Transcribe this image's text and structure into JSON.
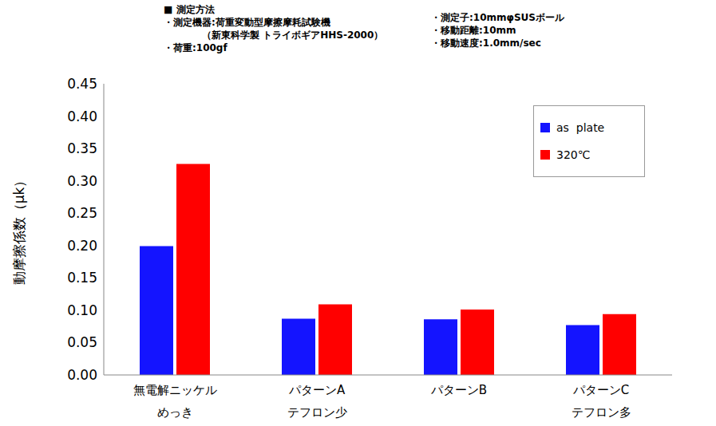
{
  "chart_data": {
    "type": "bar",
    "annotations": [
      [
        "■ 測定方法",
        "・測定機器:荷重変動型摩擦摩耗試験機",
        "（新東科学製 トライボギアHHS-2000）",
        "・荷重:100gf"
      ],
      [
        "・測定子:10mmφSUSボール",
        "・移動距離:10mm",
        "・移動速度:1.0mm/sec"
      ]
    ],
    "y_label": "動摩擦係数（μk）",
    "categories": [
      "無電解ニッケル\nめっき",
      "パターンA\nテフロン少",
      "パターンB",
      "パターンC\nテフロン多"
    ],
    "series": [
      {
        "name": "as  plate",
        "color": "#1414ff",
        "values": [
          0.199,
          0.087,
          0.086,
          0.077
        ]
      },
      {
        "name": "320℃",
        "color": "#ff0000",
        "values": [
          0.326,
          0.109,
          0.101,
          0.094
        ]
      }
    ],
    "ylim": [
      0,
      0.45
    ],
    "yticks": [
      {
        "value": 0,
        "label": "0.00"
      },
      {
        "value": 0.05,
        "label": "0.05"
      },
      {
        "value": 0.1,
        "label": "0.10"
      },
      {
        "value": 0.15,
        "label": "0.15"
      },
      {
        "value": 0.2,
        "label": "0.20"
      },
      {
        "value": 0.25,
        "label": "0.25"
      },
      {
        "value": 0.3,
        "label": "0.30"
      },
      {
        "value": 0.35,
        "label": "0.35"
      },
      {
        "value": 0.4,
        "label": "0.40"
      },
      {
        "value": 0.45,
        "label": "0.45"
      }
    ],
    "grid": false,
    "legend": "upper right"
  }
}
